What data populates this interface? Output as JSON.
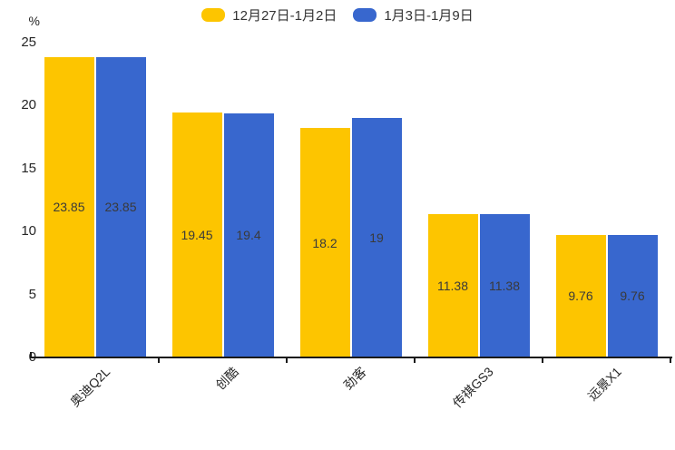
{
  "legend": {
    "items": [
      {
        "label": "12月27日-1月2日",
        "color": "#FDC500"
      },
      {
        "label": "1月3日-1月9日",
        "color": "#3867CE"
      }
    ]
  },
  "axes": {
    "unit_label": "%",
    "yticks": [
      "0",
      "5",
      "10",
      "15",
      "20",
      "25"
    ]
  },
  "colors": {
    "series1": "#FDC500",
    "series2": "#3867CE",
    "axis": "#1a1a1a",
    "tick_text": "#262626",
    "value_text": "#3a3a3a"
  },
  "chart_data": {
    "type": "bar",
    "categories": [
      "奥迪Q2L",
      "创酷",
      "劲客",
      "传祺GS3",
      "远景X1"
    ],
    "series": [
      {
        "name": "12月27日-1月2日",
        "color": "#FDC500",
        "values": [
          23.85,
          19.45,
          18.2,
          11.38,
          9.76
        ],
        "value_labels": [
          "23.85",
          "19.45",
          "18.2",
          "11.38",
          "9.76"
        ]
      },
      {
        "name": "1月3日-1月9日",
        "color": "#3867CE",
        "values": [
          23.85,
          19.4,
          19,
          11.38,
          9.76
        ],
        "value_labels": [
          "23.85",
          "19.4",
          "19",
          "11.38",
          "9.76"
        ]
      }
    ],
    "title": "",
    "xlabel": "",
    "ylabel": "%",
    "ylim": [
      0,
      25
    ],
    "yticks": [
      0,
      5,
      10,
      15,
      20,
      25
    ],
    "grid": false,
    "legend_position": "top-center",
    "value_label_position": "inside-center",
    "category_label_rotation": 45
  }
}
